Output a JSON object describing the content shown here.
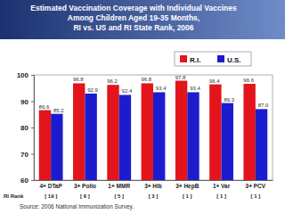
{
  "chart_data": {
    "type": "bar",
    "title": [
      "Estimated Vaccination Coverage with Individual Vaccines",
      "Among Children Aged 19-35 Months,",
      "RI vs. US and RI State Rank, 2006"
    ],
    "categories": [
      "4+ DTaP",
      "3+ Polio",
      "1+ MMR",
      "3+ Hib",
      "3+ HepB",
      "1+ Var",
      "3+ PCV"
    ],
    "series": [
      {
        "name": "R.I.",
        "color": "#e3141b",
        "values": [
          86.6,
          96.8,
          96.2,
          96.8,
          97.8,
          96.4,
          96.6
        ],
        "value_labels": [
          "86.6",
          "96.8",
          "96.2",
          "96.8",
          "97.8",
          "96.4",
          "96.6"
        ]
      },
      {
        "name": "U.S.",
        "color": "#1c1ccf",
        "values": [
          85.2,
          92.9,
          92.4,
          93.4,
          93.4,
          89.3,
          87.0
        ],
        "value_labels": [
          "85.2",
          "92.9",
          "92.4",
          "93.4",
          "93.4",
          "89.3",
          "87.0"
        ]
      }
    ],
    "ylim": [
      60,
      100
    ],
    "yticks": [
      60,
      70,
      80,
      90,
      100
    ],
    "grid": false,
    "legend": "top",
    "data_labels": true,
    "annotations": {
      "rank_label": "RI Rank",
      "ranks": [
        "[ 19 ]",
        "[ 6 ]",
        "[ 5 ]",
        "[ 3 ]",
        "[ 1 ]",
        "[ 1 ]",
        "[ 1 ]"
      ],
      "source": "Source: 2006 National Immunization Survey."
    }
  }
}
